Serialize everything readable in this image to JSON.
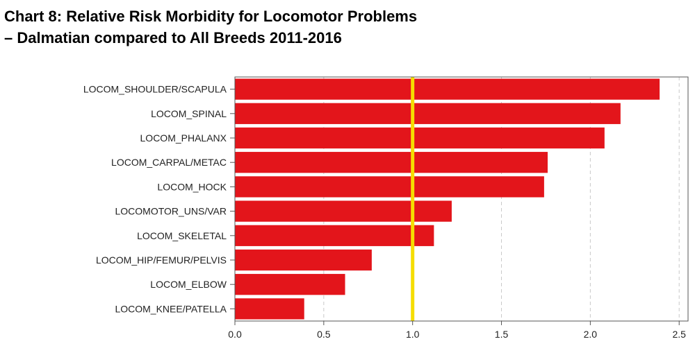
{
  "chart_data": {
    "type": "bar",
    "orientation": "horizontal",
    "title_line1": "Chart 8: Relative Risk Morbidity for Locomotor Problems",
    "title_line2": "–  Dalmatian compared to All Breeds 2011-2016",
    "categories": [
      "LOCOM_SHOULDER/SCAPULA",
      "LOCOM_SPINAL",
      "LOCOM_PHALANX",
      "LOCOM_CARPAL/METAC",
      "LOCOM_HOCK",
      "LOCOMOTOR_UNS/VAR",
      "LOCOM_SKELETAL",
      "LOCOM_HIP/FEMUR/PELVIS",
      "LOCOM_ELBOW",
      "LOCOM_KNEE/PATELLA"
    ],
    "values": [
      2.39,
      2.17,
      2.08,
      1.76,
      1.74,
      1.22,
      1.12,
      0.77,
      0.62,
      0.39
    ],
    "xlim": [
      0,
      2.55
    ],
    "xticks": [
      "0.0",
      "0.5",
      "1.0",
      "1.5",
      "2.0",
      "2.5"
    ],
    "reference_line": 1.0,
    "bar_color": "#e3151b",
    "reference_color": "#f5dd00",
    "grid": "vertical dashed",
    "xlabel": "",
    "ylabel": ""
  }
}
